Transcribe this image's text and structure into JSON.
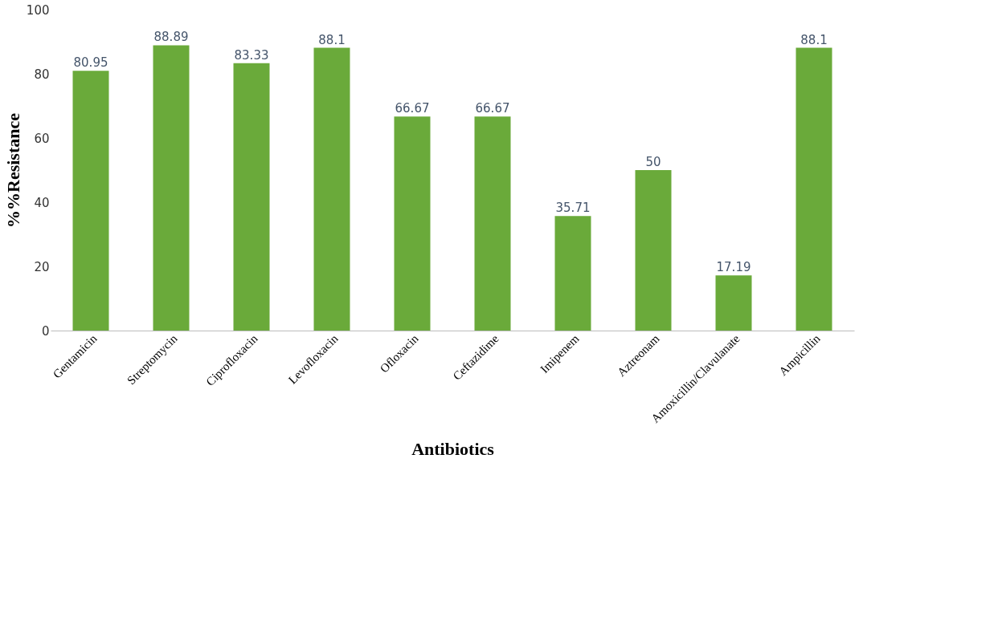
{
  "chart_data": {
    "type": "bar",
    "xlabel": "Antibiotics",
    "ylabel": "%%Resistance",
    "categories": [
      "Gentamicin",
      "Streptomycin",
      "Ciprofloxacin",
      "Levofloxacin",
      "Ofloxacin",
      "Ceftazidime",
      "Imipenem",
      "Aztreonam",
      "Amoxicillin/Clavulanate",
      "Ampicillin"
    ],
    "values": [
      80.95,
      88.89,
      83.33,
      88.1,
      66.67,
      66.67,
      35.71,
      50,
      17.19,
      88.1
    ],
    "color": "#6aaa3a",
    "ylim": [
      0,
      100
    ],
    "yticks": [
      0,
      20,
      40,
      60,
      80,
      100
    ],
    "grid": false,
    "data_labels": true
  }
}
